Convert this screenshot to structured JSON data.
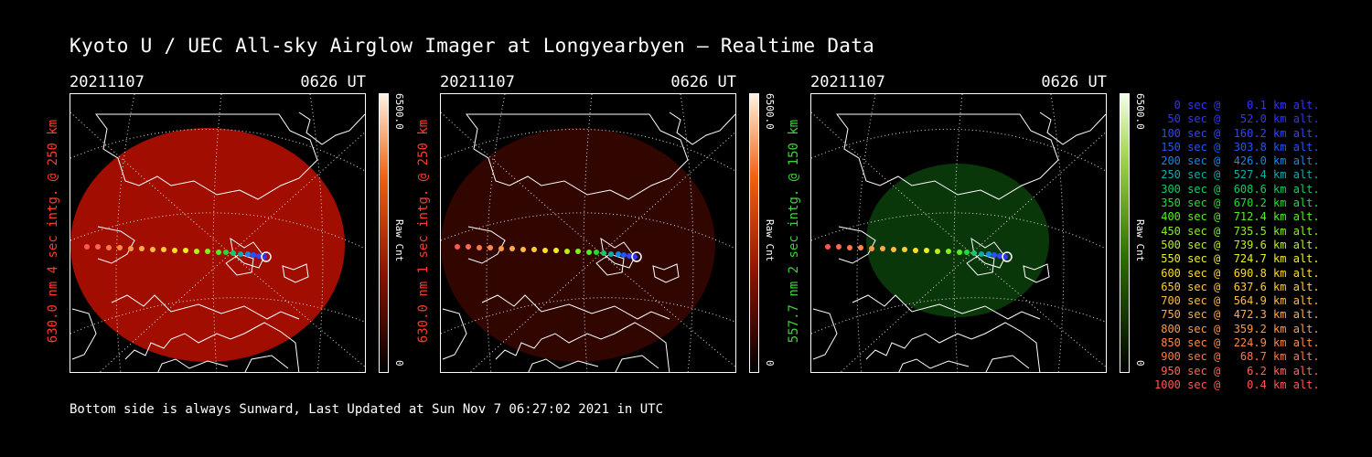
{
  "title": "Kyoto U / UEC All-sky Airglow Imager at Longyearbyen — Realtime Data",
  "footer": "Bottom side is always Sunward, Last Updated at Sun Nov  7 06:27:02 2021 in UTC",
  "panels": [
    {
      "date": "20211107",
      "time": "0626 UT",
      "ylabel": "630.0 nm 4 sec intg. @ 250 km",
      "label_color": "#ff3a2a",
      "cb_max": "6500.0",
      "cb_min": "0",
      "cb_unit": "Raw Cnt",
      "glow_color": "#b31000",
      "glow_opacity": 0.9,
      "colorbar": "red"
    },
    {
      "date": "20211107",
      "time": "0626 UT",
      "ylabel": "630.0 nm 1 sec intg. @ 250 km",
      "label_color": "#ff3a2a",
      "cb_max": "6500.0",
      "cb_min": "0",
      "cb_unit": "Raw Cnt",
      "glow_color": "#3a0600",
      "glow_opacity": 0.85,
      "colorbar": "red"
    },
    {
      "date": "20211107",
      "time": "0626 UT",
      "ylabel": "557.7 nm 2 sec intg. @ 150 km",
      "label_color": "#3ed13e",
      "cb_max": "6500.0",
      "cb_min": "0",
      "cb_unit": "Raw Cnt",
      "glow_color": "#0b3a0b",
      "glow_opacity": 0.95,
      "colorbar": "green"
    }
  ],
  "legend": [
    {
      "text": "   0 sec @    0.1 km alt.",
      "color": "#3333ff"
    },
    {
      "text": "  50 sec @   52.0 km alt.",
      "color": "#3333ff"
    },
    {
      "text": " 100 sec @  160.2 km alt.",
      "color": "#3344ff"
    },
    {
      "text": " 150 sec @  303.8 km alt.",
      "color": "#2255ff"
    },
    {
      "text": " 200 sec @  426.0 km alt.",
      "color": "#1188ee"
    },
    {
      "text": " 250 sec @  527.4 km alt.",
      "color": "#11aaaa"
    },
    {
      "text": " 300 sec @  608.6 km alt.",
      "color": "#11cc66"
    },
    {
      "text": " 350 sec @  670.2 km alt.",
      "color": "#22dd33"
    },
    {
      "text": " 400 sec @  712.4 km alt.",
      "color": "#55ee22"
    },
    {
      "text": " 450 sec @  735.5 km alt.",
      "color": "#88ee22"
    },
    {
      "text": " 500 sec @  739.6 km alt.",
      "color": "#bbee22"
    },
    {
      "text": " 550 sec @  724.7 km alt.",
      "color": "#eeee22"
    },
    {
      "text": " 600 sec @  690.8 km alt.",
      "color": "#ffdd22"
    },
    {
      "text": " 650 sec @  637.6 km alt.",
      "color": "#ffcc33"
    },
    {
      "text": " 700 sec @  564.9 km alt.",
      "color": "#ffbb44"
    },
    {
      "text": " 750 sec @  472.3 km alt.",
      "color": "#ffaa44"
    },
    {
      "text": " 800 sec @  359.2 km alt.",
      "color": "#ff9944"
    },
    {
      "text": " 850 sec @  224.9 km alt.",
      "color": "#ff8844"
    },
    {
      "text": " 900 sec @   68.7 km alt.",
      "color": "#ff7744"
    },
    {
      "text": " 950 sec @    6.2 km alt.",
      "color": "#ff6655"
    },
    {
      "text": "1000 sec @    0.4 km alt.",
      "color": "#ff5555"
    }
  ],
  "trajectory_colors": [
    "#3333ff",
    "#3344ff",
    "#2255ff",
    "#1188ee",
    "#11aaaa",
    "#11cc66",
    "#22dd33",
    "#55ee22",
    "#88ee22",
    "#bbee22",
    "#eeee22",
    "#ffdd22",
    "#ffcc33",
    "#ffbb44",
    "#ffaa44",
    "#ff9944",
    "#ff8844",
    "#ff7744",
    "#ff6655",
    "#ff5555"
  ]
}
